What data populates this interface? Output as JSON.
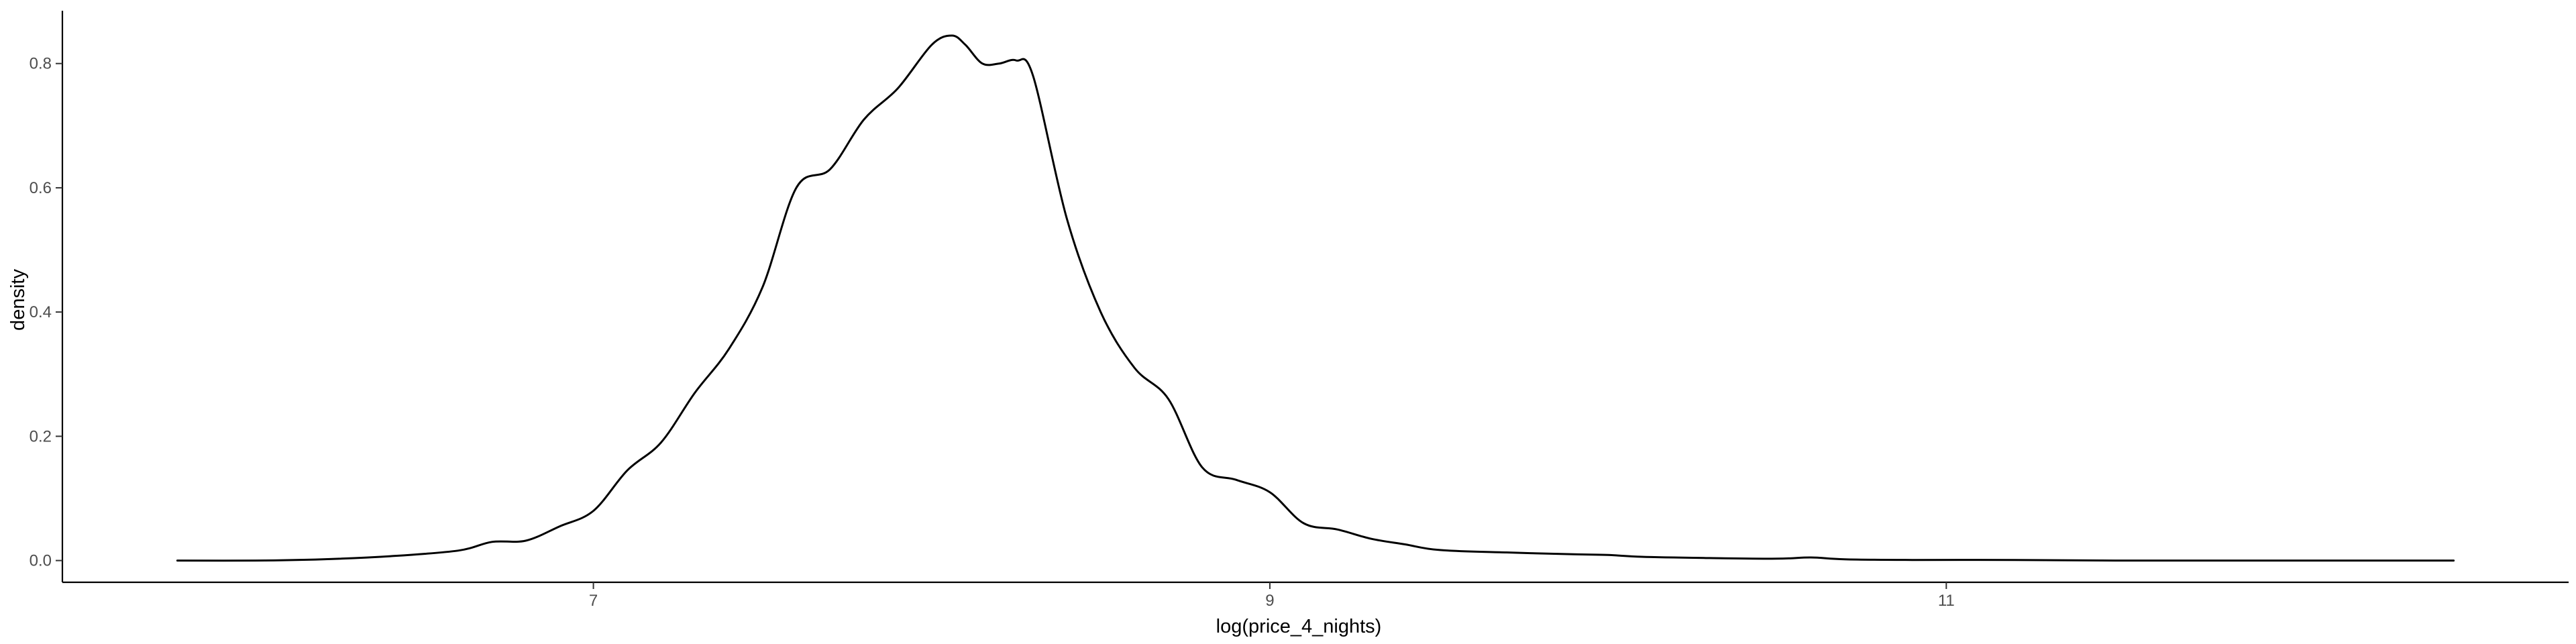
{
  "chart_data": {
    "type": "line",
    "title": "",
    "xlabel": "log(price_4_nights)",
    "ylabel": "density",
    "xlim": [
      5.43,
      12.84
    ],
    "ylim": [
      -0.035,
      0.885
    ],
    "x_ticks": [
      7,
      9,
      11
    ],
    "y_ticks": [
      0.0,
      0.2,
      0.4,
      0.6,
      0.8
    ],
    "x_tick_labels": [
      "7",
      "9",
      "11"
    ],
    "y_tick_labels": [
      "0.0",
      "0.2",
      "0.4",
      "0.6",
      "0.8"
    ],
    "grid": false,
    "legend": "none",
    "line_color": "#000000",
    "series": [
      {
        "x": [
          5.77,
          6.0,
          6.2,
          6.4,
          6.6,
          6.7,
          6.8,
          6.9,
          7.0,
          7.1,
          7.2,
          7.3,
          7.4,
          7.5,
          7.6,
          7.7,
          7.8,
          7.9,
          8.0,
          8.06,
          8.1,
          8.15,
          8.2,
          8.25,
          8.3,
          8.4,
          8.5,
          8.6,
          8.7,
          8.8,
          8.9,
          9.0,
          9.1,
          9.2,
          9.3,
          9.4,
          9.5,
          9.7,
          9.9,
          10.0,
          10.1,
          10.3,
          10.5,
          10.6,
          10.7,
          10.9,
          11.2,
          11.5,
          11.8,
          12.1,
          12.5
        ],
        "y": [
          0.0,
          0.0,
          0.002,
          0.007,
          0.016,
          0.03,
          0.032,
          0.055,
          0.08,
          0.145,
          0.19,
          0.27,
          0.34,
          0.44,
          0.6,
          0.63,
          0.71,
          0.76,
          0.83,
          0.845,
          0.83,
          0.8,
          0.8,
          0.805,
          0.78,
          0.55,
          0.4,
          0.31,
          0.26,
          0.15,
          0.13,
          0.11,
          0.06,
          0.05,
          0.035,
          0.026,
          0.017,
          0.013,
          0.01,
          0.009,
          0.006,
          0.004,
          0.003,
          0.005,
          0.002,
          0.001,
          0.001,
          0.0,
          0.0,
          0.0,
          0.0
        ]
      }
    ]
  }
}
